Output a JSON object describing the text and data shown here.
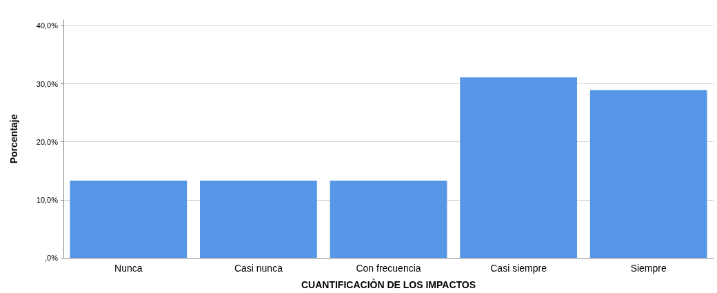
{
  "chart_data": {
    "type": "bar",
    "xlabel": "CUANTIFICACIÒN DE LOS IMPACTOS",
    "ylabel": "Porcentaje",
    "categories": [
      "Nunca",
      "Casi nunca",
      "Con frecuencia",
      "Casi siempre",
      "Siempre"
    ],
    "values": [
      13.3,
      13.3,
      13.3,
      31.1,
      28.9
    ],
    "color": "#5596e6",
    "ylim": [
      0,
      41
    ],
    "yticks": [
      {
        "value": 0,
        "label": ",0%"
      },
      {
        "value": 10,
        "label": "10,0%"
      },
      {
        "value": 20,
        "label": "20,0%"
      },
      {
        "value": 30,
        "label": "30,0%"
      },
      {
        "value": 40,
        "label": "40,0%"
      }
    ],
    "grid": "y"
  }
}
